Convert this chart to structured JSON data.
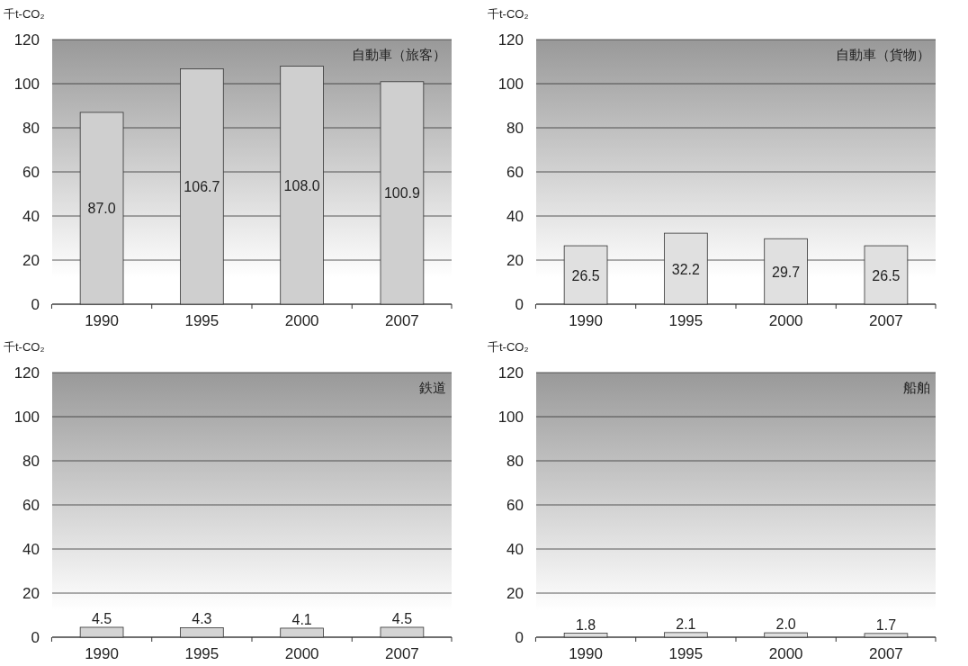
{
  "chart_data": [
    {
      "type": "bar",
      "title": "自動車（旅客）",
      "ylabel": "千t-CO₂",
      "categories": [
        "1990",
        "1995",
        "2000",
        "2007"
      ],
      "values": [
        87.0,
        106.7,
        108.0,
        100.9
      ],
      "value_labels": [
        "87.0",
        "106.7",
        "108.0",
        "100.9"
      ],
      "color": "#cfcfcf",
      "ylim": [
        0,
        120
      ],
      "yticks": [
        0,
        20,
        40,
        60,
        80,
        100,
        120
      ],
      "grid": "y"
    },
    {
      "type": "bar",
      "title": "自動車（貨物）",
      "ylabel": "千t-CO₂",
      "categories": [
        "1990",
        "1995",
        "2000",
        "2007"
      ],
      "values": [
        26.5,
        32.2,
        29.7,
        26.5
      ],
      "value_labels": [
        "26.5",
        "32.2",
        "29.7",
        "26.5"
      ],
      "color": "#e0e0e0",
      "ylim": [
        0,
        120
      ],
      "yticks": [
        0,
        20,
        40,
        60,
        80,
        100,
        120
      ],
      "grid": "y"
    },
    {
      "type": "bar",
      "title": "鉄道",
      "ylabel": "千t-CO₂",
      "categories": [
        "1990",
        "1995",
        "2000",
        "2007"
      ],
      "values": [
        4.5,
        4.3,
        4.1,
        4.5
      ],
      "value_labels": [
        "4.5",
        "4.3",
        "4.1",
        "4.5"
      ],
      "color": "#d4d4d4",
      "ylim": [
        0,
        120
      ],
      "yticks": [
        0,
        20,
        40,
        60,
        80,
        100,
        120
      ],
      "grid": "y"
    },
    {
      "type": "bar",
      "title": "船舶",
      "ylabel": "千t-CO₂",
      "categories": [
        "1990",
        "1995",
        "2000",
        "2007"
      ],
      "values": [
        1.8,
        2.1,
        2.0,
        1.7
      ],
      "value_labels": [
        "1.8",
        "2.1",
        "2.0",
        "1.7"
      ],
      "color": "#e0e0e0",
      "ylim": [
        0,
        120
      ],
      "yticks": [
        0,
        20,
        40,
        60,
        80,
        100,
        120
      ],
      "grid": "y"
    }
  ]
}
